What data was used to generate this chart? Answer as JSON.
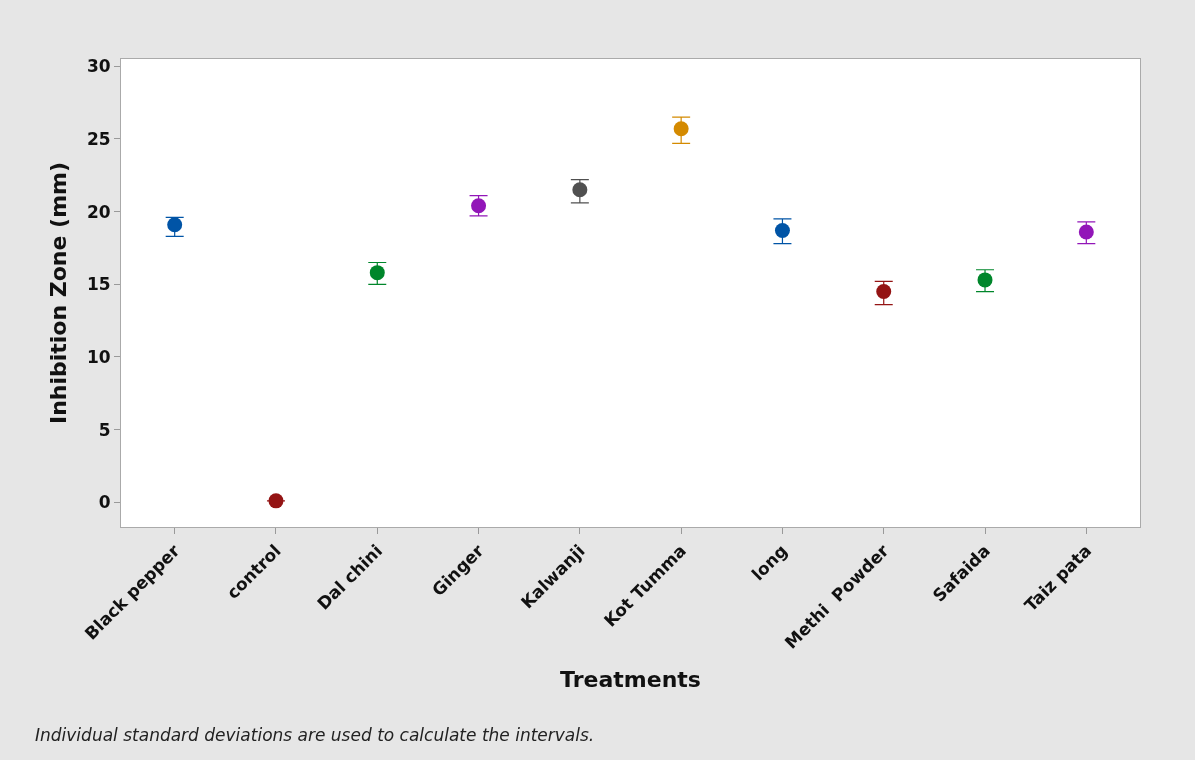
{
  "chart_data": {
    "type": "scatter",
    "xlabel": "Treatments",
    "ylabel": "Inhibition Zone (mm)",
    "categories": [
      "Black pepper",
      "control",
      "Dal chini",
      "Ginger",
      "Kalwanji",
      "Kot Tumma",
      "long",
      "Methi  Powder",
      "Safaida",
      "Taiz pata"
    ],
    "values": [
      19.1,
      0.1,
      15.8,
      20.4,
      21.5,
      25.7,
      18.7,
      14.5,
      15.3,
      18.6
    ],
    "errors": [
      [
        18.3,
        19.6
      ],
      null,
      [
        15.0,
        16.5
      ],
      [
        19.7,
        21.1
      ],
      [
        20.6,
        22.2
      ],
      [
        24.7,
        26.5
      ],
      [
        17.8,
        19.5
      ],
      [
        13.6,
        15.2
      ],
      [
        14.5,
        16.0
      ],
      [
        17.8,
        19.3
      ]
    ],
    "colors": [
      "#0054a6",
      "#941414",
      "#00862b",
      "#9216b8",
      "#505050",
      "#d48a00",
      "#0054a6",
      "#941414",
      "#00862b",
      "#9216b8"
    ],
    "ylim": [
      -1.7,
      30.5
    ],
    "yticks": [
      0,
      5,
      10,
      15,
      20,
      25,
      30
    ],
    "grid": false,
    "marker": "circle",
    "annotations": [
      "Individual standard deviations are used to calculate the intervals."
    ]
  }
}
